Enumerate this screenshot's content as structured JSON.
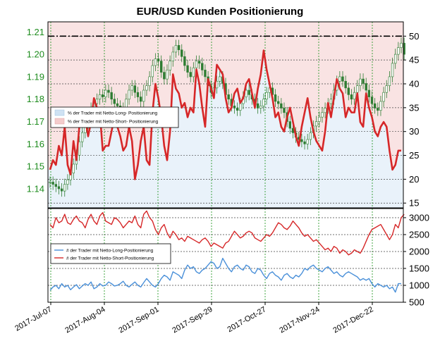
{
  "chart_data": [
    {
      "type": "line",
      "title": "EUR/USD Kunden Positionierung",
      "left_axis": {
        "ticks": [
          "1.14",
          "1.15",
          "1.16",
          "1.17",
          "1.18",
          "1.19",
          "1.20",
          "1.21"
        ],
        "ylim": [
          1.1315,
          1.2145
        ]
      },
      "right_axis": {
        "ticks": [
          "15",
          "20",
          "25",
          "30",
          "35",
          "40",
          "45",
          "50"
        ],
        "ylim": [
          14,
          53
        ]
      },
      "grid": true,
      "legend_position": "center-left",
      "reference_level": {
        "value": 50,
        "style": "dash-dot",
        "color": "#000000"
      },
      "areas": [
        {
          "name": "% der Trader mit Netto-Long- Positionierung",
          "color": "#cfe2f3"
        },
        {
          "name": "% der Trader mit Netto-Short- Positionierung",
          "color": "#f4cccc"
        }
      ],
      "series": [
        {
          "name": "price_candles",
          "color": "#2e7d32",
          "values": [
            1.143,
            1.142,
            1.141,
            1.14,
            1.139,
            1.142,
            1.144,
            1.147,
            1.151,
            1.155,
            1.161,
            1.165,
            1.169,
            1.173,
            1.176,
            1.178,
            1.18,
            1.182,
            1.181,
            1.184,
            1.183,
            1.18,
            1.178,
            1.177,
            1.176,
            1.175,
            1.18,
            1.184,
            1.186,
            1.183,
            1.181,
            1.179,
            1.184,
            1.186,
            1.19,
            1.195,
            1.198,
            1.197,
            1.192,
            1.189,
            1.193,
            1.197,
            1.201,
            1.204,
            1.202,
            1.199,
            1.195,
            1.192,
            1.19,
            1.194,
            1.197,
            1.196,
            1.193,
            1.19,
            1.186,
            1.183,
            1.185,
            1.188,
            1.19,
            1.187,
            1.182,
            1.18,
            1.177,
            1.176,
            1.175,
            1.178,
            1.181,
            1.184,
            1.182,
            1.18,
            1.178,
            1.176,
            1.177,
            1.18,
            1.183,
            1.185,
            1.182,
            1.179,
            1.178,
            1.176,
            1.174,
            1.17,
            1.167,
            1.165,
            1.163,
            1.162,
            1.161,
            1.16,
            1.162,
            1.165,
            1.168,
            1.17,
            1.172,
            1.174,
            1.176,
            1.178,
            1.18,
            1.184,
            1.188,
            1.19,
            1.188,
            1.185,
            1.182,
            1.18,
            1.183,
            1.186,
            1.189,
            1.187,
            1.184,
            1.181,
            1.178,
            1.176,
            1.175,
            1.179,
            1.183,
            1.186,
            1.19,
            1.196,
            1.2,
            1.203,
            1.205,
            1.2
          ]
        },
        {
          "name": "% der Trader mit Netto-Short- Positionierung",
          "color": "#d62728",
          "values": [
            22,
            24,
            23,
            27,
            25,
            31,
            23,
            21,
            28,
            24,
            31,
            34,
            33,
            29,
            32,
            37,
            35,
            34,
            26,
            27,
            27,
            30,
            33,
            31,
            29,
            26,
            27,
            31,
            28,
            20,
            23,
            28,
            31,
            24,
            23,
            34,
            40,
            37,
            33,
            27,
            24,
            30,
            42,
            39,
            38,
            35,
            36,
            33,
            35,
            34,
            43,
            40,
            35,
            31,
            41,
            39,
            37,
            44,
            43,
            42,
            37,
            34,
            35,
            38,
            39,
            36,
            37,
            40,
            41,
            38,
            35,
            39,
            42,
            47,
            43,
            40,
            37,
            33,
            34,
            31,
            30,
            33,
            35,
            32,
            29,
            27,
            31,
            34,
            37,
            33,
            30,
            28,
            27,
            26,
            30,
            36,
            33,
            37,
            41,
            39,
            38,
            33,
            35,
            34,
            34,
            38,
            32,
            31,
            38,
            35,
            33,
            30,
            29,
            31,
            32,
            31,
            26,
            22,
            23,
            26,
            26
          ]
        }
      ]
    },
    {
      "type": "line",
      "x_tick_labels": [
        "2017-Jul-07",
        "2017-Aug-04",
        "2017-Sep-01",
        "2017-Sep-29",
        "2017-Oct-27",
        "2017-Nov-24",
        "2017-Dec-22"
      ],
      "right_axis": {
        "ticks": [
          "500",
          "1000",
          "1500",
          "2000",
          "2500",
          "3000"
        ],
        "ylim": [
          500,
          3270
        ]
      },
      "grid": true,
      "legend_position": "center-left",
      "series": [
        {
          "name": "# der Trader mit Netto-Long-Positionierung",
          "color": "#4a90d9",
          "values": [
            850,
            950,
            1000,
            900,
            1050,
            950,
            1000,
            870,
            950,
            1020,
            900,
            980,
            1050,
            1000,
            1100,
            900,
            950,
            1050,
            980,
            1000,
            1100,
            1050,
            980,
            1000,
            1050,
            1120,
            1000,
            950,
            1030,
            1100,
            1000,
            950,
            1080,
            1200,
            1100,
            1000,
            950,
            1050,
            1200,
            1300,
            1250,
            1150,
            1400,
            1350,
            1300,
            1200,
            1450,
            1600,
            1500,
            1550,
            1400,
            1350,
            1450,
            1500,
            1600,
            1700,
            1650,
            1500,
            1550,
            1800,
            1650,
            1500,
            1400,
            1550,
            1600,
            1500,
            1450,
            1600,
            1550,
            1400,
            1350,
            1500,
            1450,
            1300,
            1200,
            1350,
            1400,
            1300,
            1250,
            1150,
            1300,
            1350,
            1250,
            1200,
            1300,
            1250,
            1350,
            1500,
            1450,
            1550,
            1600,
            1500,
            1450,
            1400,
            1500,
            1550,
            1450,
            1350,
            1400,
            1300,
            1250,
            1350,
            1400,
            1350,
            1300,
            1250,
            1150,
            1200,
            1150,
            1200,
            1050,
            950,
            1050,
            1000,
            950,
            1000,
            900,
            950,
            800,
            1050,
            1050
          ]
        },
        {
          "name": "# der Trader mit Netto-Short-Positionierung",
          "color": "#d62728",
          "values": [
            2800,
            2700,
            3000,
            2850,
            2900,
            3100,
            2850,
            2800,
            2950,
            3050,
            2900,
            2850,
            2700,
            2950,
            3100,
            2900,
            2800,
            3050,
            3150,
            2900,
            2850,
            2800,
            3000,
            2950,
            2850,
            2700,
            2800,
            2900,
            2850,
            3050,
            2800,
            2700,
            3100,
            3200,
            3000,
            2900,
            2650,
            2500,
            2700,
            2800,
            2550,
            2400,
            2600,
            2500,
            2350,
            2400,
            2300,
            2450,
            2400,
            2350,
            2300,
            2250,
            2350,
            2400,
            2300,
            2150,
            2250,
            2200,
            2150,
            2100,
            2250,
            2300,
            2450,
            2600,
            2500,
            2400,
            2450,
            2550,
            2600,
            2550,
            2400,
            2350,
            2300,
            2400,
            2500,
            2450,
            2550,
            2700,
            2850,
            2800,
            2700,
            2650,
            2750,
            2900,
            2800,
            2700,
            2550,
            2450,
            2500,
            2400,
            2300,
            2350,
            2250,
            2150,
            2050,
            2100,
            2000,
            2150,
            2100,
            1950,
            2050,
            2000,
            1900,
            1950,
            2050,
            2000,
            1950,
            2100,
            2300,
            2500,
            2650,
            2700,
            2750,
            2800,
            2650,
            2500,
            2350,
            2500,
            2800,
            2700,
            3000,
            3100
          ]
        }
      ]
    }
  ]
}
